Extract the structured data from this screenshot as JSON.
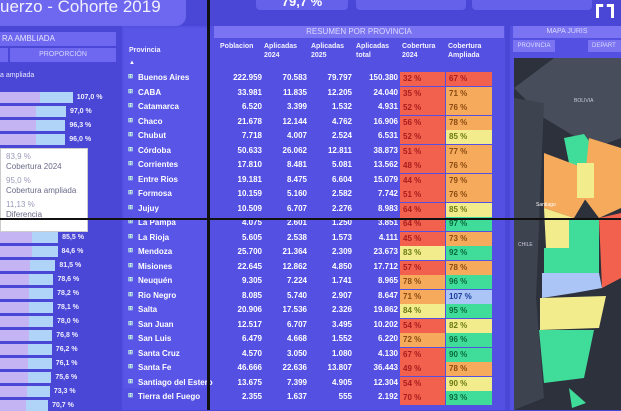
{
  "header": {
    "title": "uerzo - Cohorte 2019",
    "kpi": "79,7 %"
  },
  "left": {
    "title": "RA AMBLIADA",
    "tab": "PROPORCIÓN",
    "subtitle": "a ampliada",
    "bars": [
      {
        "label": "107,0 %",
        "v": 107.0
      },
      {
        "label": "97,0 %",
        "v": 97.0
      },
      {
        "label": "96,3 %",
        "v": 96.3
      },
      {
        "label": "96,0 %",
        "v": 96.0
      },
      {
        "label": "",
        "v": 95.5
      },
      {
        "label": "",
        "v": 93
      },
      {
        "label": "",
        "v": 92
      },
      {
        "label": "",
        "v": 90
      },
      {
        "label": "",
        "v": 90
      },
      {
        "label": "",
        "v": 88
      },
      {
        "label": "85,5 %",
        "v": 85.5
      },
      {
        "label": "84,6 %",
        "v": 84.6
      },
      {
        "label": "81,5 %",
        "v": 81.5
      },
      {
        "label": "78,6 %",
        "v": 78.6
      },
      {
        "label": "78,2 %",
        "v": 78.2
      },
      {
        "label": "78,1 %",
        "v": 78.1
      },
      {
        "label": "78,0 %",
        "v": 78.0
      },
      {
        "label": "76,8 %",
        "v": 76.8
      },
      {
        "label": "76,2 %",
        "v": 76.2
      },
      {
        "label": "76,1 %",
        "v": 76.1
      },
      {
        "label": "75,6 %",
        "v": 75.6
      },
      {
        "label": "73,3 %",
        "v": 73.3
      },
      {
        "label": "70,7 %",
        "v": 70.7
      }
    ],
    "tooltip": {
      "v1": "83,9 %",
      "l1": "Cobertura 2024",
      "v2": "95,0 %",
      "l2": "Cobertura ampliada",
      "v3": "11,13 %",
      "l3": "Diferencia"
    }
  },
  "table": {
    "title": "RESUMEN POR PROVINCIA",
    "headers": {
      "prov": "Provincia",
      "pob": "Poblacion",
      "a24": "Aplicadas 2024",
      "a25": "Aplicadas 2025",
      "tot": "Aplicadas total",
      "c24": "Cobertura 2024",
      "ca": "Cobertura Ampliada"
    },
    "colors": {
      "r": "#f2604e",
      "o": "#f6aa5c",
      "y": "#f2ec8c",
      "g": "#3fdc9a",
      "b": "#abc6f6"
    },
    "rows": [
      [
        "Buenos Aires",
        "222.959",
        "70.583",
        "79.797",
        "150.380",
        "32 %",
        "r",
        "67 %",
        "r"
      ],
      [
        "CABA",
        "33.981",
        "11.835",
        "12.205",
        "24.040",
        "35 %",
        "r",
        "71 %",
        "o"
      ],
      [
        "Catamarca",
        "6.520",
        "3.399",
        "1.532",
        "4.931",
        "52 %",
        "r",
        "76 %",
        "o"
      ],
      [
        "Chaco",
        "21.678",
        "12.144",
        "4.762",
        "16.906",
        "56 %",
        "r",
        "78 %",
        "o"
      ],
      [
        "Chubut",
        "7.718",
        "4.007",
        "2.524",
        "6.531",
        "52 %",
        "r",
        "85 %",
        "y"
      ],
      [
        "Córdoba",
        "50.633",
        "26.062",
        "12.811",
        "38.873",
        "51 %",
        "r",
        "77 %",
        "o"
      ],
      [
        "Corrientes",
        "17.810",
        "8.481",
        "5.081",
        "13.562",
        "48 %",
        "r",
        "76 %",
        "o"
      ],
      [
        "Entre Rios",
        "19.181",
        "8.475",
        "6.604",
        "15.079",
        "44 %",
        "r",
        "79 %",
        "o"
      ],
      [
        "Formosa",
        "10.159",
        "5.160",
        "2.582",
        "7.742",
        "51 %",
        "r",
        "76 %",
        "o"
      ],
      [
        "Jujuy",
        "10.509",
        "6.707",
        "2.276",
        "8.983",
        "64 %",
        "r",
        "85 %",
        "y"
      ],
      [
        "La Pampa",
        "4.075",
        "2.601",
        "1.250",
        "3.851",
        "64 %",
        "r",
        "97 %",
        "g"
      ],
      [
        "La Rioja",
        "5.605",
        "2.538",
        "1.573",
        "4.111",
        "45 %",
        "r",
        "73 %",
        "o"
      ],
      [
        "Mendoza",
        "25.700",
        "21.364",
        "2.309",
        "23.673",
        "83 %",
        "y",
        "92 %",
        "g"
      ],
      [
        "Misiones",
        "22.645",
        "12.862",
        "4.850",
        "17.712",
        "57 %",
        "r",
        "78 %",
        "o"
      ],
      [
        "Neuquén",
        "9.305",
        "7.224",
        "1.741",
        "8.965",
        "78 %",
        "o",
        "96 %",
        "g"
      ],
      [
        "Rio Negro",
        "8.085",
        "5.740",
        "2.907",
        "8.647",
        "71 %",
        "o",
        "107 %",
        "b"
      ],
      [
        "Salta",
        "20.906",
        "17.536",
        "2.326",
        "19.862",
        "84 %",
        "y",
        "95 %",
        "g"
      ],
      [
        "San Juan",
        "12.517",
        "6.707",
        "3.495",
        "10.202",
        "54 %",
        "r",
        "82 %",
        "y"
      ],
      [
        "San Luis",
        "6.479",
        "4.668",
        "1.552",
        "6.220",
        "72 %",
        "o",
        "96 %",
        "g"
      ],
      [
        "Santa Cruz",
        "4.570",
        "3.050",
        "1.080",
        "4.130",
        "67 %",
        "r",
        "90 %",
        "g"
      ],
      [
        "Santa Fe",
        "46.666",
        "22.636",
        "13.807",
        "36.443",
        "49 %",
        "r",
        "78 %",
        "o"
      ],
      [
        "Santiago del Estero",
        "13.675",
        "7.399",
        "4.905",
        "12.304",
        "54 %",
        "r",
        "90 %",
        "y"
      ],
      [
        "Tierra del Fuego",
        "2.355",
        "1.637",
        "555",
        "2.192",
        "70 %",
        "r",
        "93 %",
        "g"
      ]
    ]
  },
  "map": {
    "title": "MAPA JURIS",
    "tab1": "PROVINCIA",
    "tab2": "DEPART",
    "labels": {
      "bolivia": "BOLIVIA",
      "santiago": "Santiago",
      "chile": "CHILE"
    }
  }
}
